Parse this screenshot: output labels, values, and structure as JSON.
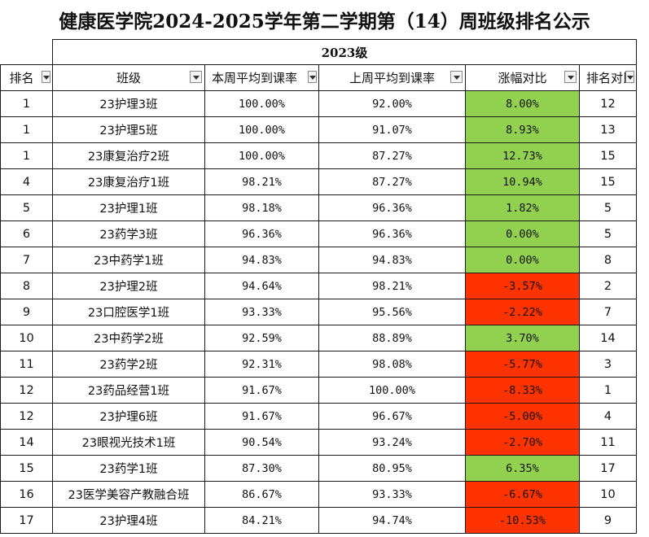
{
  "title": "健康医学院2024-2025学年第二学期第（14）周班级排名公示",
  "grade": "2023级",
  "headers": {
    "rank": "排名",
    "class": "班级",
    "this_week": "本周平均到课率",
    "last_week": "上周平均到课率",
    "change": "涨幅对比",
    "rank_compare": "排名对比"
  },
  "colors": {
    "increase": "#92d050",
    "decrease": "#ff3300"
  },
  "rows": [
    {
      "rank": "1",
      "class": "23护理3班",
      "this_week": "100.00%",
      "last_week": "92.00%",
      "change": "8.00%",
      "trend": "up",
      "rank_compare": "12"
    },
    {
      "rank": "1",
      "class": "23护理5班",
      "this_week": "100.00%",
      "last_week": "91.07%",
      "change": "8.93%",
      "trend": "up",
      "rank_compare": "13"
    },
    {
      "rank": "1",
      "class": "23康复治疗2班",
      "this_week": "100.00%",
      "last_week": "87.27%",
      "change": "12.73%",
      "trend": "up",
      "rank_compare": "15"
    },
    {
      "rank": "4",
      "class": "23康复治疗1班",
      "this_week": "98.21%",
      "last_week": "87.27%",
      "change": "10.94%",
      "trend": "up",
      "rank_compare": "15"
    },
    {
      "rank": "5",
      "class": "23护理1班",
      "this_week": "98.18%",
      "last_week": "96.36%",
      "change": "1.82%",
      "trend": "up",
      "rank_compare": "5"
    },
    {
      "rank": "6",
      "class": "23药学3班",
      "this_week": "96.36%",
      "last_week": "96.36%",
      "change": "0.00%",
      "trend": "up",
      "rank_compare": "5"
    },
    {
      "rank": "7",
      "class": "23中药学1班",
      "this_week": "94.83%",
      "last_week": "94.83%",
      "change": "0.00%",
      "trend": "up",
      "rank_compare": "8"
    },
    {
      "rank": "8",
      "class": "23护理2班",
      "this_week": "94.64%",
      "last_week": "98.21%",
      "change": "-3.57%",
      "trend": "down",
      "rank_compare": "2"
    },
    {
      "rank": "9",
      "class": "23口腔医学1班",
      "this_week": "93.33%",
      "last_week": "95.56%",
      "change": "-2.22%",
      "trend": "down",
      "rank_compare": "7"
    },
    {
      "rank": "10",
      "class": "23中药学2班",
      "this_week": "92.59%",
      "last_week": "88.89%",
      "change": "3.70%",
      "trend": "up",
      "rank_compare": "14"
    },
    {
      "rank": "11",
      "class": "23药学2班",
      "this_week": "92.31%",
      "last_week": "98.08%",
      "change": "-5.77%",
      "trend": "down",
      "rank_compare": "3"
    },
    {
      "rank": "12",
      "class": "23药品经营1班",
      "this_week": "91.67%",
      "last_week": "100.00%",
      "change": "-8.33%",
      "trend": "down",
      "rank_compare": "1"
    },
    {
      "rank": "12",
      "class": "23护理6班",
      "this_week": "91.67%",
      "last_week": "96.67%",
      "change": "-5.00%",
      "trend": "down",
      "rank_compare": "4"
    },
    {
      "rank": "14",
      "class": "23眼视光技术1班",
      "this_week": "90.54%",
      "last_week": "93.24%",
      "change": "-2.70%",
      "trend": "down",
      "rank_compare": "11"
    },
    {
      "rank": "15",
      "class": "23药学1班",
      "this_week": "87.30%",
      "last_week": "80.95%",
      "change": "6.35%",
      "trend": "up",
      "rank_compare": "17"
    },
    {
      "rank": "16",
      "class": "23医学美容产教融合班",
      "this_week": "86.67%",
      "last_week": "93.33%",
      "change": "-6.67%",
      "trend": "down",
      "rank_compare": "10"
    },
    {
      "rank": "17",
      "class": "23护理4班",
      "this_week": "84.21%",
      "last_week": "94.74%",
      "change": "-10.53%",
      "trend": "down",
      "rank_compare": "9"
    }
  ]
}
